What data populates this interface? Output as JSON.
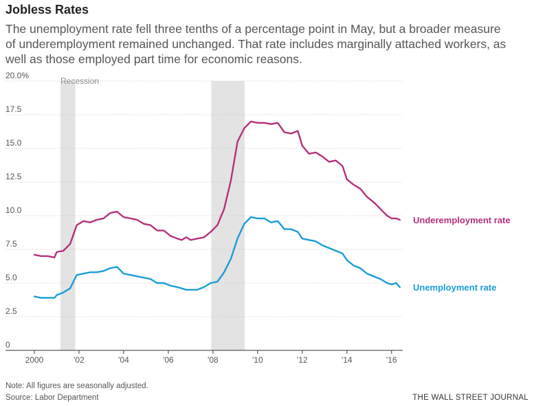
{
  "header": {
    "title": "Jobless Rates",
    "subtitle": "The unemployment rate fell three tenths of a percentage point in May, but a broader measure of underemployment remained unchanged. That rate includes marginally attached workers, as well as those employed part time for economic reasons."
  },
  "footer": {
    "note": "Note: All figures are seasonally adjusted.",
    "source": "Source: Labor Department",
    "brand": "THE WALL STREET JOURNAL"
  },
  "chart_data": {
    "type": "line",
    "title": "Jobless Rates",
    "xlabel": "",
    "ylabel": "",
    "xlim": [
      2000,
      2016.5
    ],
    "ylim": [
      0,
      20
    ],
    "grid": "horizontal",
    "y_ticks": [
      {
        "value": 20,
        "label": "20.0%"
      },
      {
        "value": 17.5,
        "label": "17.5"
      },
      {
        "value": 15,
        "label": "15.0"
      },
      {
        "value": 12.5,
        "label": "12.5"
      },
      {
        "value": 10,
        "label": "10.0"
      },
      {
        "value": 7.5,
        "label": "7.5"
      },
      {
        "value": 5,
        "label": "5.0"
      },
      {
        "value": 2.5,
        "label": "2.5"
      },
      {
        "value": 0,
        "label": "0"
      }
    ],
    "x_ticks": [
      {
        "value": 2000,
        "label": "2000"
      },
      {
        "value": 2002,
        "label": "'02"
      },
      {
        "value": 2004,
        "label": "'04"
      },
      {
        "value": 2006,
        "label": "'06"
      },
      {
        "value": 2008,
        "label": "'08"
      },
      {
        "value": 2010,
        "label": "'10"
      },
      {
        "value": 2012,
        "label": "'12"
      },
      {
        "value": 2014,
        "label": "'14"
      },
      {
        "value": 2016,
        "label": "'16"
      }
    ],
    "recessions": [
      {
        "start": 2001.17,
        "end": 2001.83,
        "label": "Recession"
      },
      {
        "start": 2007.92,
        "end": 2009.42,
        "label": ""
      }
    ],
    "series": [
      {
        "name": "Underemployment rate",
        "color": "#b5307a",
        "points": [
          [
            2000.0,
            7.1
          ],
          [
            2000.3,
            7.0
          ],
          [
            2000.6,
            7.0
          ],
          [
            2000.9,
            6.9
          ],
          [
            2001.0,
            7.3
          ],
          [
            2001.3,
            7.4
          ],
          [
            2001.6,
            7.9
          ],
          [
            2001.9,
            9.3
          ],
          [
            2002.2,
            9.6
          ],
          [
            2002.5,
            9.5
          ],
          [
            2002.8,
            9.7
          ],
          [
            2003.1,
            9.8
          ],
          [
            2003.4,
            10.2
          ],
          [
            2003.7,
            10.3
          ],
          [
            2004.0,
            9.9
          ],
          [
            2004.3,
            9.8
          ],
          [
            2004.6,
            9.7
          ],
          [
            2004.9,
            9.4
          ],
          [
            2005.2,
            9.3
          ],
          [
            2005.5,
            8.9
          ],
          [
            2005.8,
            8.9
          ],
          [
            2006.1,
            8.5
          ],
          [
            2006.4,
            8.3
          ],
          [
            2006.6,
            8.2
          ],
          [
            2006.8,
            8.4
          ],
          [
            2007.0,
            8.2
          ],
          [
            2007.3,
            8.3
          ],
          [
            2007.6,
            8.4
          ],
          [
            2007.9,
            8.8
          ],
          [
            2008.2,
            9.3
          ],
          [
            2008.5,
            10.5
          ],
          [
            2008.8,
            12.6
          ],
          [
            2009.1,
            15.5
          ],
          [
            2009.4,
            16.5
          ],
          [
            2009.7,
            17.0
          ],
          [
            2010.0,
            16.9
          ],
          [
            2010.3,
            16.9
          ],
          [
            2010.6,
            16.8
          ],
          [
            2010.9,
            16.9
          ],
          [
            2011.2,
            16.2
          ],
          [
            2011.5,
            16.1
          ],
          [
            2011.8,
            16.3
          ],
          [
            2012.0,
            15.2
          ],
          [
            2012.3,
            14.6
          ],
          [
            2012.6,
            14.7
          ],
          [
            2012.9,
            14.4
          ],
          [
            2013.2,
            14.0
          ],
          [
            2013.5,
            14.1
          ],
          [
            2013.8,
            13.7
          ],
          [
            2014.0,
            12.7
          ],
          [
            2014.3,
            12.3
          ],
          [
            2014.6,
            12.0
          ],
          [
            2014.9,
            11.4
          ],
          [
            2015.2,
            11.0
          ],
          [
            2015.5,
            10.5
          ],
          [
            2015.8,
            10.0
          ],
          [
            2016.0,
            9.8
          ],
          [
            2016.2,
            9.8
          ],
          [
            2016.37,
            9.7
          ]
        ],
        "label_value": 9.7
      },
      {
        "name": "Unemployment rate",
        "color": "#1a9cd8",
        "points": [
          [
            2000.0,
            4.0
          ],
          [
            2000.3,
            3.9
          ],
          [
            2000.6,
            3.9
          ],
          [
            2000.9,
            3.9
          ],
          [
            2001.0,
            4.1
          ],
          [
            2001.3,
            4.3
          ],
          [
            2001.6,
            4.6
          ],
          [
            2001.9,
            5.6
          ],
          [
            2002.2,
            5.7
          ],
          [
            2002.5,
            5.8
          ],
          [
            2002.8,
            5.8
          ],
          [
            2003.1,
            5.9
          ],
          [
            2003.4,
            6.1
          ],
          [
            2003.7,
            6.2
          ],
          [
            2004.0,
            5.7
          ],
          [
            2004.3,
            5.6
          ],
          [
            2004.6,
            5.5
          ],
          [
            2004.9,
            5.4
          ],
          [
            2005.2,
            5.3
          ],
          [
            2005.5,
            5.0
          ],
          [
            2005.8,
            5.0
          ],
          [
            2006.1,
            4.8
          ],
          [
            2006.4,
            4.7
          ],
          [
            2006.6,
            4.6
          ],
          [
            2006.8,
            4.5
          ],
          [
            2007.0,
            4.5
          ],
          [
            2007.3,
            4.5
          ],
          [
            2007.6,
            4.7
          ],
          [
            2007.9,
            5.0
          ],
          [
            2008.2,
            5.1
          ],
          [
            2008.5,
            5.8
          ],
          [
            2008.8,
            6.8
          ],
          [
            2009.1,
            8.3
          ],
          [
            2009.4,
            9.4
          ],
          [
            2009.7,
            9.9
          ],
          [
            2010.0,
            9.8
          ],
          [
            2010.3,
            9.8
          ],
          [
            2010.6,
            9.5
          ],
          [
            2010.9,
            9.6
          ],
          [
            2011.2,
            9.0
          ],
          [
            2011.5,
            9.0
          ],
          [
            2011.8,
            8.8
          ],
          [
            2012.0,
            8.3
          ],
          [
            2012.3,
            8.2
          ],
          [
            2012.6,
            8.1
          ],
          [
            2012.9,
            7.8
          ],
          [
            2013.2,
            7.6
          ],
          [
            2013.5,
            7.4
          ],
          [
            2013.8,
            7.2
          ],
          [
            2014.0,
            6.7
          ],
          [
            2014.3,
            6.3
          ],
          [
            2014.6,
            6.1
          ],
          [
            2014.9,
            5.7
          ],
          [
            2015.2,
            5.5
          ],
          [
            2015.5,
            5.3
          ],
          [
            2015.8,
            5.0
          ],
          [
            2016.0,
            4.9
          ],
          [
            2016.2,
            5.0
          ],
          [
            2016.37,
            4.7
          ]
        ],
        "label_value": 4.7
      }
    ]
  }
}
